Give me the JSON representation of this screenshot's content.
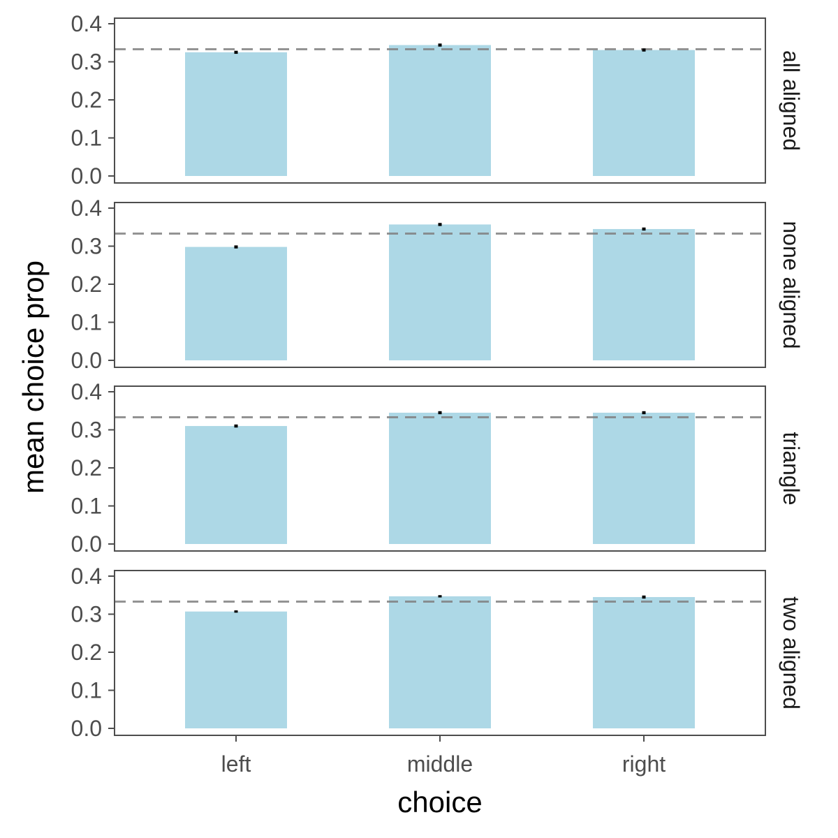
{
  "chart_data": {
    "type": "bar",
    "xlabel": "choice",
    "ylabel": "mean choice prop",
    "categories": [
      "left",
      "middle",
      "right"
    ],
    "ylim": [
      0,
      0.42
    ],
    "yticks": [
      0.0,
      0.1,
      0.2,
      0.3,
      0.4
    ],
    "ytick_labels": [
      "0.0",
      "0.1",
      "0.2",
      "0.3",
      "0.4"
    ],
    "reference_line": 0.333,
    "grid": false,
    "bar_color": "#add8e6",
    "reference_line_color": "#808080",
    "panels": [
      {
        "label": "all aligned",
        "values": [
          0.325,
          0.344,
          0.331
        ],
        "errors": [
          0.004,
          0.004,
          0.004
        ]
      },
      {
        "label": "none aligned",
        "values": [
          0.298,
          0.357,
          0.345
        ],
        "errors": [
          0.004,
          0.004,
          0.004
        ]
      },
      {
        "label": "triangle",
        "values": [
          0.31,
          0.345,
          0.345
        ],
        "errors": [
          0.004,
          0.004,
          0.004
        ]
      },
      {
        "label": "two aligned",
        "values": [
          0.307,
          0.347,
          0.345
        ],
        "errors": [
          0.003,
          0.003,
          0.004
        ]
      }
    ]
  }
}
